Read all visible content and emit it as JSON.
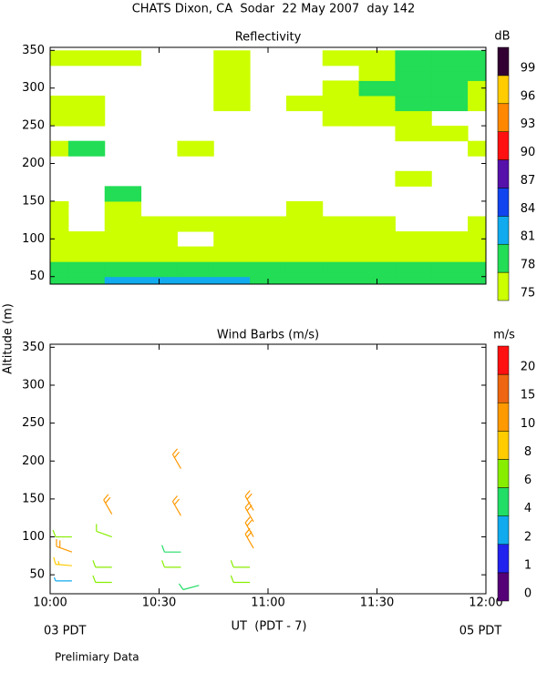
{
  "title": "CHATS Dixon, CA  Sodar  22 May 2007  day 142",
  "y_label": "Altitude (m)",
  "x_label": "UT  (PDT - 7)",
  "x_left_note": "03 PDT",
  "x_right_note": "05 PDT",
  "note": "Prelimiary Data",
  "chart_data": [
    {
      "type": "contour",
      "title": "Reflectivity",
      "xlim": [
        600,
        720
      ],
      "xticks": [
        600,
        630,
        660,
        690,
        720
      ],
      "ylim": [
        40,
        354
      ],
      "yticks": [
        50,
        100,
        150,
        200,
        250,
        300,
        350
      ],
      "times": [
        600,
        610,
        620,
        630,
        640,
        650,
        660,
        670,
        680,
        690,
        700,
        710,
        720
      ],
      "altitudes": [
        40,
        60,
        80,
        100,
        120,
        140,
        160,
        180,
        200,
        220,
        240,
        260,
        280,
        300,
        320,
        340
      ],
      "values": [
        [
          78,
          78,
          81,
          81,
          81,
          81,
          78,
          78,
          78,
          78,
          78,
          78,
          78
        ],
        [
          78,
          78,
          78,
          78,
          78,
          78,
          78,
          78,
          78,
          78,
          78,
          78,
          78
        ],
        [
          75,
          75,
          75,
          75,
          75,
          75,
          75,
          75,
          75,
          75,
          75,
          75,
          75
        ],
        [
          75,
          75,
          75,
          75,
          null,
          75,
          75,
          75,
          75,
          75,
          75,
          75,
          75
        ],
        [
          75,
          null,
          75,
          75,
          75,
          75,
          75,
          75,
          75,
          75,
          null,
          null,
          75
        ],
        [
          75,
          null,
          75,
          null,
          null,
          null,
          null,
          75,
          null,
          null,
          null,
          null,
          null
        ],
        [
          null,
          null,
          78,
          null,
          null,
          null,
          null,
          null,
          null,
          null,
          null,
          null,
          null
        ],
        [
          null,
          null,
          null,
          null,
          null,
          null,
          null,
          null,
          null,
          null,
          75,
          null,
          null
        ],
        [
          null,
          null,
          null,
          null,
          null,
          null,
          null,
          null,
          null,
          null,
          null,
          null,
          null
        ],
        [
          75,
          78,
          null,
          null,
          75,
          null,
          null,
          null,
          null,
          null,
          null,
          null,
          75
        ],
        [
          null,
          null,
          null,
          null,
          null,
          null,
          null,
          null,
          null,
          null,
          75,
          75,
          null
        ],
        [
          75,
          75,
          null,
          null,
          null,
          null,
          null,
          null,
          75,
          75,
          75,
          null,
          null
        ],
        [
          75,
          75,
          null,
          null,
          null,
          75,
          null,
          75,
          75,
          75,
          78,
          78,
          75
        ],
        [
          null,
          null,
          null,
          null,
          null,
          75,
          null,
          null,
          75,
          78,
          78,
          78,
          75
        ],
        [
          null,
          null,
          null,
          null,
          null,
          75,
          null,
          null,
          null,
          75,
          78,
          78,
          78
        ],
        [
          75,
          75,
          75,
          null,
          null,
          75,
          null,
          null,
          75,
          75,
          78,
          78,
          78
        ]
      ],
      "colorbar": {
        "label": "dB",
        "levels": [
          75,
          78,
          81,
          84,
          87,
          90,
          93,
          96,
          99
        ],
        "colors": [
          "#ccff00",
          "#22dd55",
          "#11aaee",
          "#1144ee",
          "#5511aa",
          "#ff1111",
          "#ff8800",
          "#ffcc00",
          "#330033"
        ]
      }
    },
    {
      "type": "wind_barbs",
      "title": "Wind Barbs (m/s)",
      "xlim": [
        600,
        720
      ],
      "xticks": [
        {
          "value": 600,
          "label": "10:00"
        },
        {
          "value": 630,
          "label": "10:30"
        },
        {
          "value": 660,
          "label": "11:00"
        },
        {
          "value": 690,
          "label": "11:30"
        },
        {
          "value": 720,
          "label": "12:00"
        }
      ],
      "ylim": [
        25,
        354
      ],
      "yticks": [
        50,
        100,
        150,
        200,
        250,
        300,
        350
      ],
      "times": [
        606,
        606,
        606,
        606,
        617,
        617,
        617,
        617,
        636,
        636,
        636,
        636,
        641,
        655,
        655,
        656,
        656,
        656,
        656
      ],
      "altitudes": [
        42,
        62,
        80,
        100,
        40,
        60,
        100,
        130,
        60,
        80,
        128,
        190,
        36,
        40,
        60,
        85,
        100,
        120,
        135
      ],
      "speeds": [
        3,
        9,
        12,
        7,
        7,
        7,
        7,
        12,
        7,
        5,
        12,
        12,
        5,
        7,
        7,
        12,
        12,
        12,
        12
      ],
      "directions": [
        270,
        275,
        290,
        270,
        270,
        270,
        290,
        330,
        270,
        270,
        330,
        330,
        255,
        270,
        270,
        330,
        330,
        330,
        330
      ],
      "colorbar": {
        "label": "m/s",
        "levels": [
          0,
          1,
          2,
          4,
          6,
          8,
          10,
          15,
          20
        ],
        "colors": [
          "#550077",
          "#2222ee",
          "#11aaee",
          "#22dd66",
          "#88ee00",
          "#ffcc00",
          "#ff9900",
          "#ee6611",
          "#ff1111"
        ]
      }
    }
  ]
}
